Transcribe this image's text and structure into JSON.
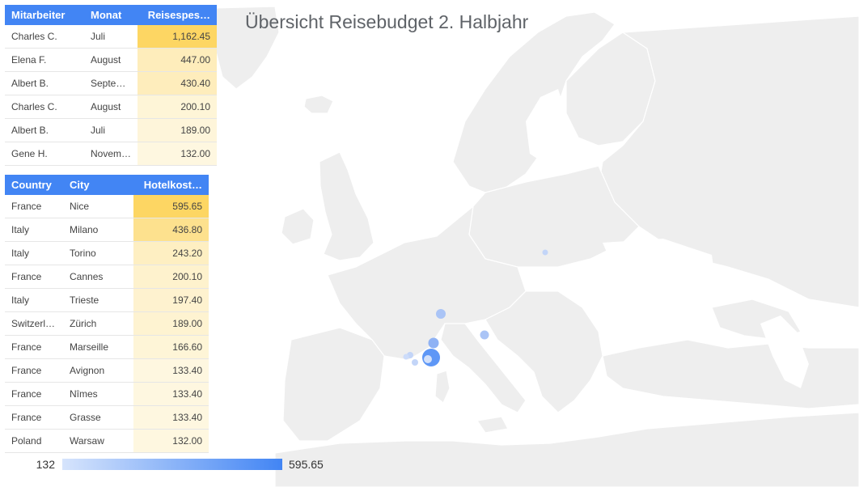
{
  "title": "Übersicht Reisebudget 2. Halbjahr",
  "colors": {
    "header": "#4285f4",
    "heat_high": "#fdd663",
    "heat_low": "#fef7e0",
    "land": "#eeeeee",
    "border": "#ffffff",
    "bubble": "#4285f4"
  },
  "table1": {
    "headers": [
      "Mitarbeiter",
      "Monat",
      "Reisespes…"
    ],
    "rows": [
      {
        "name": "Charles C.",
        "month": "Juli",
        "value": "1,162.45",
        "level": 1.0
      },
      {
        "name": "Elena F.",
        "month": "August",
        "value": "447.00",
        "level": 0.3
      },
      {
        "name": "Albert B.",
        "month": "Septe…",
        "value": "430.40",
        "level": 0.29
      },
      {
        "name": "Charles C.",
        "month": "August",
        "value": "200.10",
        "level": 0.07
      },
      {
        "name": "Albert B.",
        "month": "Juli",
        "value": "189.00",
        "level": 0.05
      },
      {
        "name": "Gene H.",
        "month": "Novem…",
        "value": "132.00",
        "level": 0.0
      }
    ]
  },
  "table2": {
    "headers": [
      "Country",
      "City",
      "Hotelkost…"
    ],
    "rows": [
      {
        "country": "France",
        "city": "Nice",
        "value": "595.65",
        "level": 1.0
      },
      {
        "country": "Italy",
        "city": "Milano",
        "value": "436.80",
        "level": 0.66
      },
      {
        "country": "Italy",
        "city": "Torino",
        "value": "243.20",
        "level": 0.24
      },
      {
        "country": "France",
        "city": "Cannes",
        "value": "200.10",
        "level": 0.15
      },
      {
        "country": "Italy",
        "city": "Trieste",
        "value": "197.40",
        "level": 0.14
      },
      {
        "country": "Switzerl…",
        "city": "Zürich",
        "value": "189.00",
        "level": 0.12
      },
      {
        "country": "France",
        "city": "Marseille",
        "value": "166.60",
        "level": 0.07
      },
      {
        "country": "France",
        "city": "Avignon",
        "value": "133.40",
        "level": 0.0
      },
      {
        "country": "France",
        "city": "Nîmes",
        "value": "133.40",
        "level": 0.0
      },
      {
        "country": "France",
        "city": "Grasse",
        "value": "133.40",
        "level": 0.0
      },
      {
        "country": "Poland",
        "city": "Warsaw",
        "value": "132.00",
        "level": 0.0
      }
    ]
  },
  "legend": {
    "min": "132",
    "max": "595.65"
  }
}
